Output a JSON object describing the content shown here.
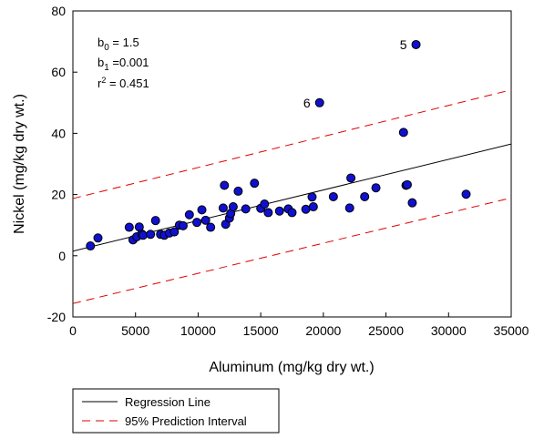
{
  "chart_data": {
    "type": "scatter",
    "xlabel": "Aluminum (mg/kg dry wt.)",
    "ylabel": "Nickel (mg/kg dry wt.)",
    "xlim": [
      0,
      35000
    ],
    "ylim": [
      -20,
      80
    ],
    "xticks": [
      0,
      5000,
      10000,
      15000,
      20000,
      25000,
      30000,
      35000
    ],
    "yticks": [
      -20,
      0,
      20,
      40,
      60,
      80
    ],
    "grid": false,
    "legend_position": "bottom-left, below plot",
    "stats": {
      "b0": {
        "sym": "b",
        "sub": "0",
        "rest": " = 1.5"
      },
      "b1": {
        "sym": "b",
        "sub": "1",
        "rest": " =0.001"
      },
      "r2": {
        "sym": "r",
        "sup": "2",
        "rest": " = 0.451"
      }
    },
    "series": [
      {
        "name": "",
        "kind": "points",
        "color": "#1010d0",
        "stroke": "#000000",
        "points": [
          [
            1400,
            3.2
          ],
          [
            2000,
            5.8
          ],
          [
            4500,
            9.3
          ],
          [
            4800,
            5.2
          ],
          [
            5100,
            6.2
          ],
          [
            5300,
            9.4
          ],
          [
            5500,
            7.1
          ],
          [
            5600,
            6.7
          ],
          [
            6200,
            7.0
          ],
          [
            6600,
            11.5
          ],
          [
            7000,
            7.0
          ],
          [
            7300,
            6.7
          ],
          [
            7700,
            7.4
          ],
          [
            8100,
            7.8
          ],
          [
            8500,
            10.0
          ],
          [
            8800,
            9.8
          ],
          [
            9300,
            13.4
          ],
          [
            9900,
            10.9
          ],
          [
            10300,
            15.0
          ],
          [
            10600,
            11.6
          ],
          [
            11000,
            9.3
          ],
          [
            12000,
            15.6
          ],
          [
            12100,
            23.0
          ],
          [
            12200,
            10.3
          ],
          [
            12500,
            12.3
          ],
          [
            12600,
            13.8
          ],
          [
            12800,
            16.0
          ],
          [
            13200,
            21.1
          ],
          [
            13800,
            15.3
          ],
          [
            14500,
            23.7
          ],
          [
            15000,
            15.5
          ],
          [
            15300,
            16.9
          ],
          [
            15600,
            14.1
          ],
          [
            16500,
            14.6
          ],
          [
            17200,
            15.3
          ],
          [
            17500,
            14.1
          ],
          [
            18600,
            15.2
          ],
          [
            19100,
            19.2
          ],
          [
            19200,
            16.0
          ],
          [
            20800,
            19.3
          ],
          [
            22100,
            15.6
          ],
          [
            22200,
            25.4
          ],
          [
            23300,
            19.3
          ],
          [
            24200,
            22.2
          ],
          [
            26400,
            40.3
          ],
          [
            26600,
            23.0
          ],
          [
            26700,
            23.2
          ],
          [
            27100,
            17.3
          ],
          [
            31400,
            20.1
          ],
          [
            19700,
            50.0
          ],
          [
            27400,
            69.0
          ]
        ]
      },
      {
        "name": "Regression Line",
        "kind": "line",
        "color": "#000000",
        "dash": "",
        "points": [
          [
            0,
            1.5
          ],
          [
            35000,
            36.5
          ]
        ]
      },
      {
        "name": "95% Prediction Interval",
        "kind": "line",
        "color": "#e00000",
        "dash": "9,6",
        "points": [
          [
            0,
            18.7
          ],
          [
            35000,
            54.2
          ]
        ]
      },
      {
        "name": "",
        "kind": "line",
        "color": "#e00000",
        "dash": "9,6",
        "points": [
          [
            0,
            -15.6
          ],
          [
            35000,
            18.9
          ]
        ]
      }
    ],
    "annotations": [
      {
        "text": "6",
        "x": 19700,
        "y": 50.0,
        "side": "left"
      },
      {
        "text": "5",
        "x": 27400,
        "y": 69.0,
        "side": "left"
      }
    ],
    "legend": [
      {
        "label": "Regression Line",
        "color": "#000000",
        "dash": ""
      },
      {
        "label": "95% Prediction Interval",
        "color": "#e00000",
        "dash": "9,6"
      }
    ]
  }
}
